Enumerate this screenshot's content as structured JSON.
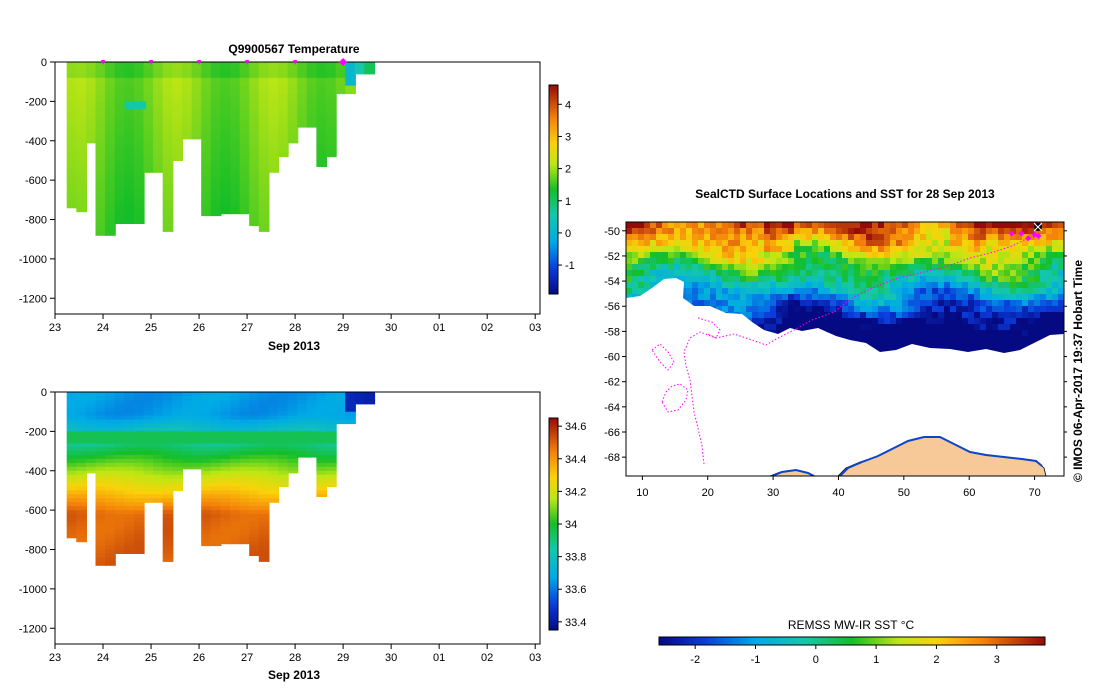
{
  "chart_data": [
    {
      "id": "temperature",
      "type": "heatmap",
      "title": "Q9900567  Temperature",
      "xlabel": "Sep 2013",
      "ylabel": "",
      "x_tick_labels": [
        "23",
        "24",
        "25",
        "26",
        "27",
        "28",
        "29",
        "30",
        "01",
        "02",
        "03"
      ],
      "y_tick_labels": [
        "0",
        "-200",
        "-400",
        "-600",
        "-800",
        "-1000",
        "-1200"
      ],
      "xlim_days": [
        0,
        10.1
      ],
      "ylim": [
        -1280,
        0
      ],
      "colorbar": {
        "min": -1.9,
        "max": 4.6,
        "ticks": [
          "-1",
          "0",
          "1",
          "2",
          "3",
          "4"
        ],
        "tick_values": [
          -1,
          0,
          1,
          2,
          3,
          4
        ]
      },
      "profiles": [
        {
          "day": 0.35,
          "max_depth": 740
        },
        {
          "day": 0.55,
          "max_depth": 760
        },
        {
          "day": 0.75,
          "max_depth": 410
        },
        {
          "day": 0.95,
          "max_depth": 880
        },
        {
          "day": 1.15,
          "max_depth": 880
        },
        {
          "day": 1.35,
          "max_depth": 820
        },
        {
          "day": 1.55,
          "max_depth": 820
        },
        {
          "day": 1.75,
          "max_depth": 820
        },
        {
          "day": 1.95,
          "max_depth": 560
        },
        {
          "day": 2.15,
          "max_depth": 560
        },
        {
          "day": 2.35,
          "max_depth": 860
        },
        {
          "day": 2.55,
          "max_depth": 500
        },
        {
          "day": 2.75,
          "max_depth": 390
        },
        {
          "day": 2.95,
          "max_depth": 390
        },
        {
          "day": 3.15,
          "max_depth": 780
        },
        {
          "day": 3.35,
          "max_depth": 780
        },
        {
          "day": 3.55,
          "max_depth": 770
        },
        {
          "day": 3.75,
          "max_depth": 770
        },
        {
          "day": 3.95,
          "max_depth": 770
        },
        {
          "day": 4.15,
          "max_depth": 830
        },
        {
          "day": 4.35,
          "max_depth": 860
        },
        {
          "day": 4.55,
          "max_depth": 560
        },
        {
          "day": 4.75,
          "max_depth": 480
        },
        {
          "day": 4.95,
          "max_depth": 410
        },
        {
          "day": 5.15,
          "max_depth": 330
        },
        {
          "day": 5.35,
          "max_depth": 330
        },
        {
          "day": 5.55,
          "max_depth": 530
        },
        {
          "day": 5.75,
          "max_depth": 480
        },
        {
          "day": 5.95,
          "max_depth": 160
        },
        {
          "day": 6.15,
          "max_depth": 160
        },
        {
          "day": 6.35,
          "max_depth": 60
        },
        {
          "day": 6.55,
          "max_depth": 60
        }
      ],
      "surface_markers_days": [
        1,
        2,
        3,
        4,
        5,
        6
      ]
    },
    {
      "id": "salinity",
      "type": "heatmap",
      "title": "",
      "xlabel": "Sep 2013",
      "ylabel": "",
      "x_tick_labels": [
        "23",
        "24",
        "25",
        "26",
        "27",
        "28",
        "29",
        "30",
        "01",
        "02",
        "03"
      ],
      "y_tick_labels": [
        "0",
        "-200",
        "-400",
        "-600",
        "-800",
        "-1000",
        "-1200"
      ],
      "xlim_days": [
        0,
        10.1
      ],
      "ylim": [
        -1280,
        0
      ],
      "colorbar": {
        "min": 33.35,
        "max": 34.65,
        "ticks": [
          "33.4",
          "33.6",
          "33.8",
          "34",
          "34.2",
          "34.4",
          "34.6"
        ],
        "tick_values": [
          33.4,
          33.6,
          33.8,
          34.0,
          34.2,
          34.4,
          34.6
        ]
      }
    },
    {
      "id": "sst_map",
      "type": "heatmap",
      "title": "SealCTD Surface Locations and SST for 28 Sep 2013",
      "x_tick_labels": [
        "10",
        "20",
        "30",
        "40",
        "50",
        "60",
        "70"
      ],
      "x_tick_values": [
        10,
        20,
        30,
        40,
        50,
        60,
        70
      ],
      "y_tick_labels": [
        "-50",
        "-52",
        "-54",
        "-56",
        "-58",
        "-60",
        "-62",
        "-64",
        "-66",
        "-68"
      ],
      "y_tick_values": [
        -50,
        -52,
        -54,
        -56,
        -58,
        -60,
        -62,
        -64,
        -66,
        -68
      ],
      "xlim": [
        7.5,
        74.5
      ],
      "ylim": [
        -69.5,
        -49.3
      ],
      "colorbar": {
        "label": "REMSS MW-IR SST °C",
        "min": -2.6,
        "max": 3.8,
        "ticks": [
          "-2",
          "-1",
          "0",
          "1",
          "2",
          "3"
        ],
        "tick_values": [
          -2,
          -1,
          0,
          1,
          2,
          3
        ]
      },
      "side_label": "©  IMOS 06-Apr-2017 19:37 Hobart Time"
    }
  ],
  "colors": {
    "land": "#f7c898",
    "track": "#ff00ff",
    "background": "#ffffff"
  }
}
